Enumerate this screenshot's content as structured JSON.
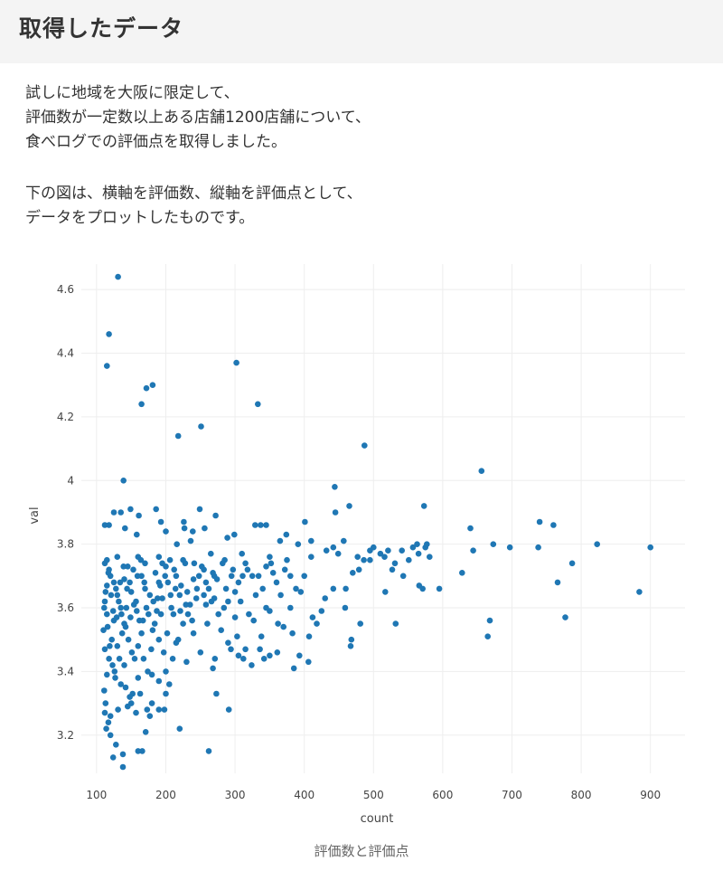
{
  "header": {
    "title": "取得したデータ"
  },
  "intro": {
    "p1": [
      "試しに地域を大阪に限定して、",
      "評価数が一定数以上ある店舗1200店舗について、",
      "食べログでの評価点を取得しました。"
    ],
    "p2": [
      "下の図は、横軸を評価数、縦軸を評価点として、",
      "データをプロットしたものです。"
    ]
  },
  "caption": "評価数と評価点",
  "chart_data": {
    "type": "scatter",
    "xlabel": "count",
    "ylabel": "val",
    "xticks": [
      100,
      200,
      300,
      400,
      500,
      600,
      700,
      800,
      900
    ],
    "yticks": [
      3.2,
      3.4,
      3.6,
      3.8,
      4,
      4.2,
      4.4,
      4.6
    ],
    "ytick_labels": [
      "3.2",
      "3.4",
      "3.6",
      "3.8",
      "4",
      "4.2",
      "4.4",
      "4.6"
    ],
    "xlim": [
      78,
      950
    ],
    "ylim": [
      3.08,
      4.68
    ],
    "grid": true,
    "marker_color": "#1f77b4",
    "points": [
      [
        131,
        4.64
      ],
      [
        118,
        4.46
      ],
      [
        115,
        4.36
      ],
      [
        302,
        4.37
      ],
      [
        181,
        4.3
      ],
      [
        172,
        4.29
      ],
      [
        165,
        4.24
      ],
      [
        333,
        4.24
      ],
      [
        251,
        4.17
      ],
      [
        218,
        4.14
      ],
      [
        487,
        4.11
      ],
      [
        656,
        4.03
      ],
      [
        139,
        4.0
      ],
      [
        444,
        3.98
      ],
      [
        465,
        3.92
      ],
      [
        573,
        3.92
      ],
      [
        445,
        3.9
      ],
      [
        125,
        3.9
      ],
      [
        135,
        3.9
      ],
      [
        149,
        3.91
      ],
      [
        186,
        3.91
      ],
      [
        161,
        3.89
      ],
      [
        249,
        3.91
      ],
      [
        272,
        3.89
      ],
      [
        226,
        3.87
      ],
      [
        227,
        3.85
      ],
      [
        256,
        3.85
      ],
      [
        329,
        3.86
      ],
      [
        337,
        3.86
      ],
      [
        345,
        3.86
      ],
      [
        401,
        3.87
      ],
      [
        118,
        3.86
      ],
      [
        112,
        3.86
      ],
      [
        141,
        3.85
      ],
      [
        158,
        3.83
      ],
      [
        193,
        3.87
      ],
      [
        200,
        3.84
      ],
      [
        239,
        3.84
      ],
      [
        640,
        3.85
      ],
      [
        740,
        3.87
      ],
      [
        760,
        3.86
      ],
      [
        289,
        3.82
      ],
      [
        299,
        3.83
      ],
      [
        374,
        3.83
      ],
      [
        410,
        3.81
      ],
      [
        432,
        3.78
      ],
      [
        442,
        3.79
      ],
      [
        449,
        3.77
      ],
      [
        457,
        3.81
      ],
      [
        495,
        3.78
      ],
      [
        500,
        3.79
      ],
      [
        510,
        3.77
      ],
      [
        521,
        3.78
      ],
      [
        541,
        3.78
      ],
      [
        557,
        3.79
      ],
      [
        563,
        3.8
      ],
      [
        575,
        3.79
      ],
      [
        577,
        3.8
      ],
      [
        644,
        3.78
      ],
      [
        673,
        3.8
      ],
      [
        697,
        3.79
      ],
      [
        738,
        3.79
      ],
      [
        823,
        3.8
      ],
      [
        900,
        3.79
      ],
      [
        365,
        3.81
      ],
      [
        391,
        3.8
      ],
      [
        236,
        3.81
      ],
      [
        216,
        3.8
      ],
      [
        477,
        3.76
      ],
      [
        486,
        3.75
      ],
      [
        495,
        3.75
      ],
      [
        516,
        3.76
      ],
      [
        531,
        3.74
      ],
      [
        551,
        3.75
      ],
      [
        565,
        3.77
      ],
      [
        581,
        3.76
      ],
      [
        787,
        3.74
      ],
      [
        628,
        3.71
      ],
      [
        470,
        3.71
      ],
      [
        479,
        3.72
      ],
      [
        517,
        3.65
      ],
      [
        460,
        3.66
      ],
      [
        527,
        3.72
      ],
      [
        543,
        3.7
      ],
      [
        566,
        3.67
      ],
      [
        571,
        3.66
      ],
      [
        595,
        3.66
      ],
      [
        766,
        3.68
      ],
      [
        884,
        3.65
      ],
      [
        777,
        3.57
      ],
      [
        668,
        3.56
      ],
      [
        665,
        3.51
      ],
      [
        532,
        3.55
      ],
      [
        481,
        3.55
      ],
      [
        467,
        3.48
      ],
      [
        468,
        3.5
      ],
      [
        459,
        3.6
      ],
      [
        442,
        3.66
      ],
      [
        430,
        3.63
      ],
      [
        425,
        3.59
      ],
      [
        418,
        3.55
      ],
      [
        412,
        3.57
      ],
      [
        407,
        3.51
      ],
      [
        406,
        3.43
      ],
      [
        393,
        3.45
      ],
      [
        385,
        3.41
      ],
      [
        383,
        3.52
      ],
      [
        370,
        3.54
      ],
      [
        362,
        3.55
      ],
      [
        361,
        3.46
      ],
      [
        350,
        3.45
      ],
      [
        342,
        3.44
      ],
      [
        338,
        3.51
      ],
      [
        336,
        3.47
      ],
      [
        327,
        3.56
      ],
      [
        324,
        3.42
      ],
      [
        315,
        3.47
      ],
      [
        312,
        3.44
      ],
      [
        305,
        3.45
      ],
      [
        303,
        3.51
      ],
      [
        294,
        3.47
      ],
      [
        290,
        3.49
      ],
      [
        291,
        3.28
      ],
      [
        273,
        3.33
      ],
      [
        271,
        3.44
      ],
      [
        268,
        3.41
      ],
      [
        262,
        3.15
      ],
      [
        220,
        3.22
      ],
      [
        198,
        3.28
      ],
      [
        190,
        3.28
      ],
      [
        177,
        3.26
      ],
      [
        171,
        3.21
      ],
      [
        166,
        3.15
      ],
      [
        160,
        3.15
      ],
      [
        152,
        3.33
      ],
      [
        148,
        3.32
      ],
      [
        142,
        3.35
      ],
      [
        138,
        3.14
      ],
      [
        138,
        3.1
      ],
      [
        128,
        3.17
      ],
      [
        124,
        3.13
      ],
      [
        120,
        3.2
      ],
      [
        117,
        3.24
      ],
      [
        114,
        3.22
      ],
      [
        112,
        3.27
      ],
      [
        113,
        3.3
      ],
      [
        111,
        3.34
      ],
      [
        115,
        3.39
      ],
      [
        120,
        3.26
      ],
      [
        131,
        3.28
      ],
      [
        145,
        3.29
      ],
      [
        157,
        3.27
      ],
      [
        150,
        3.3
      ],
      [
        173,
        3.28
      ],
      [
        200,
        3.33
      ],
      [
        180,
        3.3
      ],
      [
        163,
        3.33
      ],
      [
        135,
        3.36
      ],
      [
        126,
        3.4
      ],
      [
        140,
        3.42
      ],
      [
        160,
        3.38
      ],
      [
        180,
        3.39
      ],
      [
        200,
        3.4
      ],
      [
        210,
        3.44
      ],
      [
        230,
        3.43
      ],
      [
        250,
        3.46
      ],
      [
        205,
        3.36
      ],
      [
        190,
        3.37
      ],
      [
        118,
        3.44
      ],
      [
        112,
        3.47
      ],
      [
        122,
        3.5
      ],
      [
        130,
        3.48
      ],
      [
        110,
        3.53
      ],
      [
        125,
        3.56
      ],
      [
        140,
        3.55
      ],
      [
        165,
        3.52
      ],
      [
        190,
        3.5
      ],
      [
        215,
        3.49
      ],
      [
        240,
        3.52
      ],
      [
        260,
        3.55
      ],
      [
        280,
        3.53
      ],
      [
        115,
        3.58
      ],
      [
        135,
        3.6
      ],
      [
        158,
        3.59
      ],
      [
        182,
        3.62
      ],
      [
        208,
        3.6
      ],
      [
        232,
        3.58
      ],
      [
        258,
        3.61
      ],
      [
        284,
        3.6
      ],
      [
        300,
        3.57
      ],
      [
        350,
        3.59
      ],
      [
        380,
        3.6
      ],
      [
        112,
        3.62
      ],
      [
        130,
        3.64
      ],
      [
        150,
        3.65
      ],
      [
        170,
        3.66
      ],
      [
        195,
        3.63
      ],
      [
        220,
        3.64
      ],
      [
        245,
        3.66
      ],
      [
        270,
        3.63
      ],
      [
        300,
        3.65
      ],
      [
        340,
        3.66
      ],
      [
        395,
        3.65
      ],
      [
        115,
        3.67
      ],
      [
        140,
        3.69
      ],
      [
        165,
        3.7
      ],
      [
        190,
        3.68
      ],
      [
        215,
        3.7
      ],
      [
        240,
        3.69
      ],
      [
        268,
        3.71
      ],
      [
        295,
        3.7
      ],
      [
        325,
        3.7
      ],
      [
        355,
        3.71
      ],
      [
        400,
        3.7
      ],
      [
        118,
        3.72
      ],
      [
        145,
        3.73
      ],
      [
        170,
        3.74
      ],
      [
        200,
        3.73
      ],
      [
        228,
        3.74
      ],
      [
        255,
        3.72
      ],
      [
        285,
        3.75
      ],
      [
        315,
        3.74
      ],
      [
        345,
        3.73
      ],
      [
        375,
        3.75
      ],
      [
        115,
        3.75
      ],
      [
        130,
        3.76
      ],
      [
        160,
        3.76
      ],
      [
        190,
        3.76
      ],
      [
        225,
        3.75
      ],
      [
        265,
        3.77
      ],
      [
        310,
        3.77
      ],
      [
        350,
        3.76
      ],
      [
        410,
        3.76
      ],
      [
        120,
        3.7
      ],
      [
        125,
        3.68
      ],
      [
        128,
        3.66
      ],
      [
        132,
        3.62
      ],
      [
        136,
        3.58
      ],
      [
        142,
        3.54
      ],
      [
        146,
        3.5
      ],
      [
        151,
        3.46
      ],
      [
        155,
        3.44
      ],
      [
        160,
        3.48
      ],
      [
        167,
        3.56
      ],
      [
        172,
        3.6
      ],
      [
        177,
        3.64
      ],
      [
        185,
        3.71
      ],
      [
        195,
        3.74
      ],
      [
        203,
        3.68
      ],
      [
        211,
        3.58
      ],
      [
        218,
        3.5
      ],
      [
        225,
        3.55
      ],
      [
        235,
        3.61
      ],
      [
        248,
        3.7
      ],
      [
        262,
        3.66
      ],
      [
        276,
        3.58
      ],
      [
        290,
        3.62
      ],
      [
        305,
        3.68
      ],
      [
        318,
        3.72
      ],
      [
        330,
        3.64
      ],
      [
        345,
        3.6
      ],
      [
        360,
        3.68
      ],
      [
        372,
        3.72
      ],
      [
        388,
        3.66
      ],
      [
        112,
        3.74
      ],
      [
        116,
        3.54
      ],
      [
        119,
        3.48
      ],
      [
        123,
        3.42
      ],
      [
        127,
        3.38
      ],
      [
        133,
        3.44
      ],
      [
        137,
        3.52
      ],
      [
        143,
        3.6
      ],
      [
        148,
        3.68
      ],
      [
        153,
        3.72
      ],
      [
        157,
        3.62
      ],
      [
        162,
        3.56
      ],
      [
        168,
        3.44
      ],
      [
        174,
        3.4
      ],
      [
        179,
        3.47
      ],
      [
        184,
        3.55
      ],
      [
        188,
        3.63
      ],
      [
        193,
        3.58
      ],
      [
        197,
        3.46
      ],
      [
        202,
        3.52
      ],
      [
        207,
        3.64
      ],
      [
        212,
        3.72
      ],
      [
        222,
        3.67
      ],
      [
        229,
        3.61
      ],
      [
        238,
        3.56
      ],
      [
        244,
        3.63
      ],
      [
        252,
        3.73
      ],
      [
        258,
        3.68
      ],
      [
        266,
        3.62
      ],
      [
        274,
        3.69
      ],
      [
        282,
        3.74
      ],
      [
        297,
        3.72
      ],
      [
        308,
        3.62
      ],
      [
        320,
        3.58
      ],
      [
        334,
        3.7
      ],
      [
        352,
        3.74
      ],
      [
        366,
        3.64
      ],
      [
        380,
        3.7
      ],
      [
        111,
        3.6
      ],
      [
        113,
        3.65
      ],
      [
        117,
        3.71
      ],
      [
        121,
        3.64
      ],
      [
        124,
        3.59
      ],
      [
        129,
        3.57
      ],
      [
        134,
        3.68
      ],
      [
        139,
        3.73
      ],
      [
        144,
        3.66
      ],
      [
        149,
        3.57
      ],
      [
        154,
        3.61
      ],
      [
        159,
        3.7
      ],
      [
        164,
        3.75
      ],
      [
        169,
        3.68
      ],
      [
        175,
        3.58
      ],
      [
        181,
        3.53
      ],
      [
        187,
        3.59
      ],
      [
        192,
        3.67
      ],
      [
        199,
        3.7
      ],
      [
        206,
        3.75
      ],
      [
        214,
        3.66
      ],
      [
        221,
        3.59
      ],
      [
        231,
        3.65
      ],
      [
        241,
        3.74
      ],
      [
        255,
        3.64
      ],
      [
        270,
        3.7
      ],
      [
        287,
        3.66
      ],
      [
        311,
        3.7
      ]
    ]
  }
}
